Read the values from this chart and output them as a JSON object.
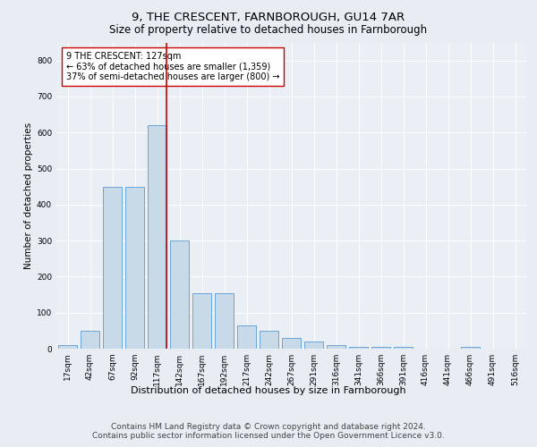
{
  "title1": "9, THE CRESCENT, FARNBOROUGH, GU14 7AR",
  "title2": "Size of property relative to detached houses in Farnborough",
  "xlabel": "Distribution of detached houses by size in Farnborough",
  "ylabel": "Number of detached properties",
  "footnote": "Contains HM Land Registry data © Crown copyright and database right 2024.\nContains public sector information licensed under the Open Government Licence v3.0.",
  "bar_labels": [
    "17sqm",
    "42sqm",
    "67sqm",
    "92sqm",
    "117sqm",
    "142sqm",
    "167sqm",
    "192sqm",
    "217sqm",
    "242sqm",
    "267sqm",
    "291sqm",
    "316sqm",
    "341sqm",
    "366sqm",
    "391sqm",
    "416sqm",
    "441sqm",
    "466sqm",
    "491sqm",
    "516sqm"
  ],
  "bar_values": [
    10,
    50,
    450,
    450,
    620,
    300,
    155,
    155,
    65,
    50,
    30,
    20,
    10,
    5,
    5,
    5,
    0,
    0,
    5,
    0,
    0
  ],
  "bar_color": "#c8d9e8",
  "bar_edge_color": "#5b9bd5",
  "highlight_color": "#cc0000",
  "highlight_bin": 4,
  "annotation_text": "9 THE CRESCENT: 127sqm\n← 63% of detached houses are smaller (1,359)\n37% of semi-detached houses are larger (800) →",
  "annotation_box_color": "#ffffff",
  "annotation_box_edge": "#cc0000",
  "ylim": [
    0,
    850
  ],
  "yticks": [
    0,
    100,
    200,
    300,
    400,
    500,
    600,
    700,
    800
  ],
  "bg_color": "#e8edf3",
  "plot_bg_color": "#eaeff5",
  "grid_color": "#ffffff",
  "title1_fontsize": 9.5,
  "title2_fontsize": 8.5,
  "xlabel_fontsize": 8,
  "ylabel_fontsize": 7.5,
  "tick_fontsize": 6.5,
  "annotation_fontsize": 7,
  "footnote_fontsize": 6.5
}
